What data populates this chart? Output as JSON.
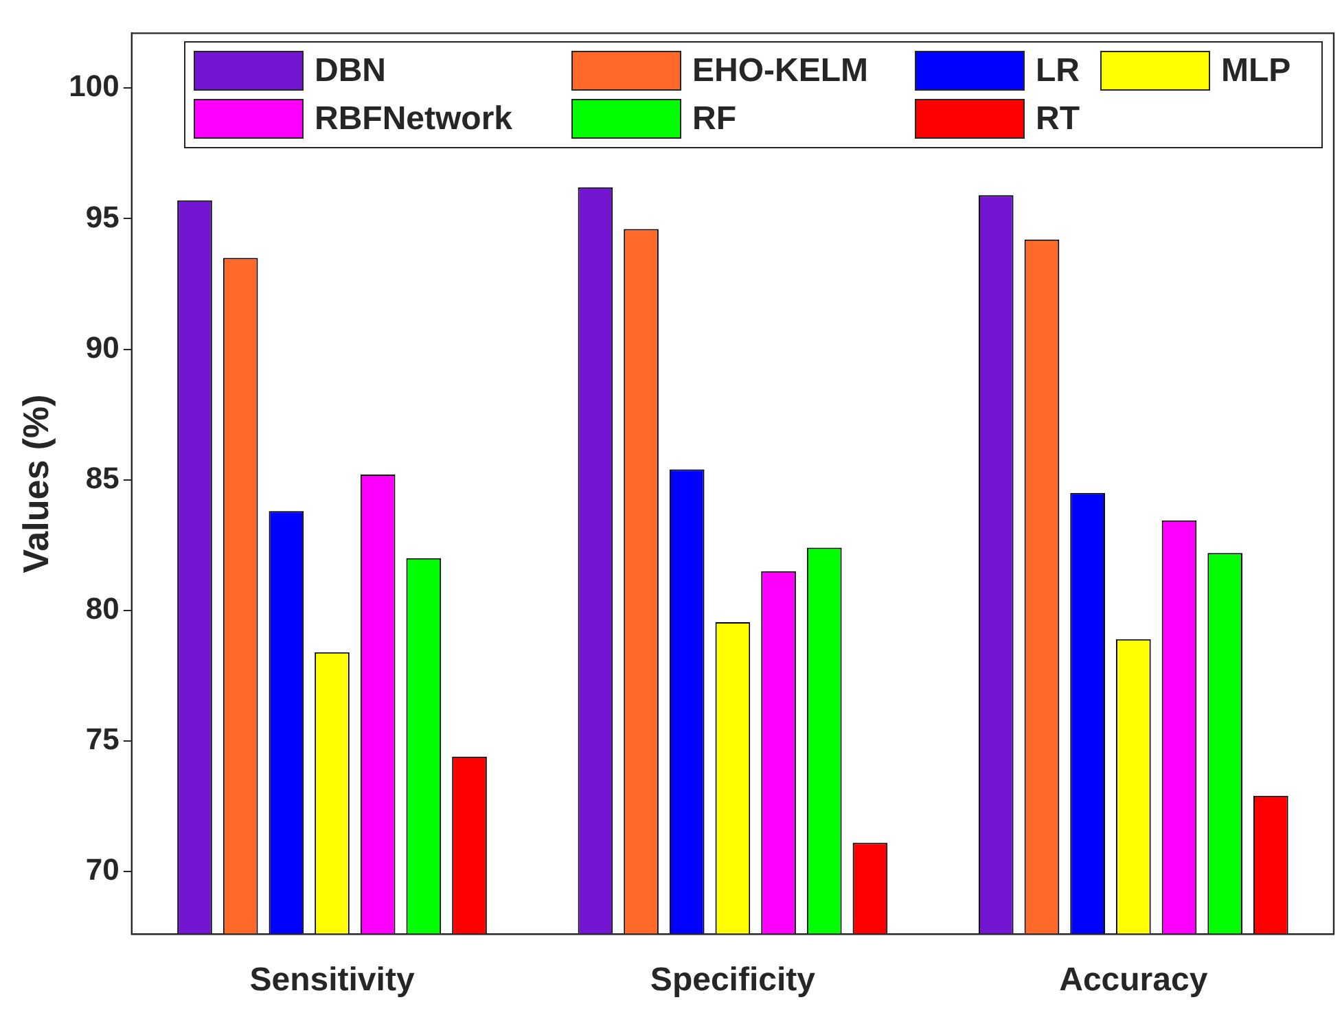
{
  "chart_data": {
    "type": "bar",
    "ylabel": "Values (%)",
    "categories": [
      "Sensitivity",
      "Specificity",
      "Accuracy"
    ],
    "ylim": [
      67.6,
      102.1
    ],
    "yticks": [
      70,
      75,
      80,
      85,
      90,
      95,
      100
    ],
    "grid": false,
    "legend": "top",
    "series": [
      {
        "name": "DBN",
        "color": "#7216d2",
        "values": [
          95.7,
          96.2,
          95.9
        ]
      },
      {
        "name": "EHO-KELM",
        "color": "#ff6a2a",
        "values": [
          93.5,
          94.6,
          94.2
        ]
      },
      {
        "name": "LR",
        "color": "#0000ff",
        "values": [
          83.8,
          85.4,
          84.5
        ]
      },
      {
        "name": "MLP",
        "color": "#ffff00",
        "values": [
          78.4,
          79.55,
          78.9
        ]
      },
      {
        "name": "RBFNetwork",
        "color": "#ff00ff",
        "values": [
          85.2,
          81.5,
          83.45
        ]
      },
      {
        "name": "RF",
        "color": "#00ff00",
        "values": [
          82.0,
          82.4,
          82.2
        ]
      },
      {
        "name": "RT",
        "color": "#ff0000",
        "values": [
          74.4,
          71.1,
          72.9
        ]
      }
    ]
  }
}
